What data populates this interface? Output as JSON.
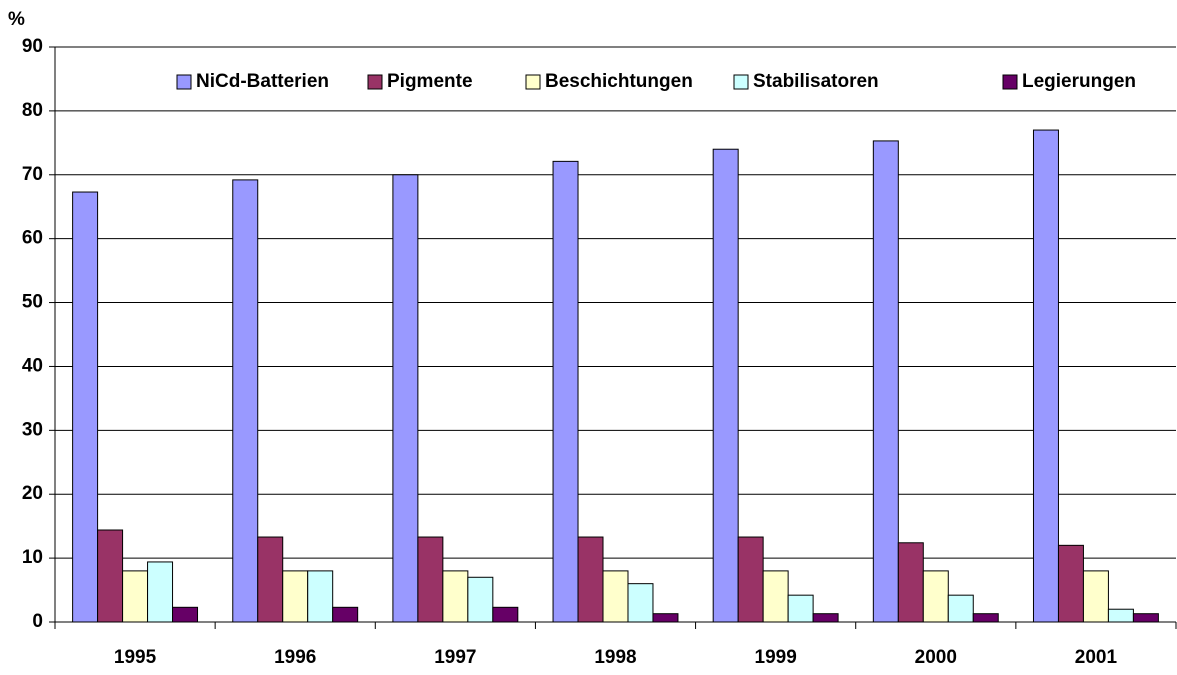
{
  "chart_data": {
    "type": "bar",
    "y_label": "%",
    "categories": [
      "1995",
      "1996",
      "1997",
      "1998",
      "1999",
      "2000",
      "2001"
    ],
    "series": [
      {
        "name": "NiCd-Batterien",
        "color": "#9999ff",
        "values": [
          67.3,
          69.2,
          70,
          72.1,
          74,
          75.3,
          77
        ]
      },
      {
        "name": "Pigmente",
        "color": "#993366",
        "values": [
          14.4,
          13.3,
          13.3,
          13.3,
          13.3,
          12.4,
          12
        ]
      },
      {
        "name": "Beschichtungen",
        "color": "#ffffcc",
        "values": [
          8,
          8,
          8,
          8,
          8,
          8,
          8
        ]
      },
      {
        "name": "Stabilisatoren",
        "color": "#ccffff",
        "values": [
          9.4,
          8,
          7,
          6,
          4.2,
          4.2,
          2
        ]
      },
      {
        "name": "Legierungen",
        "color": "#660066",
        "values": [
          2.3,
          2.3,
          2.3,
          1.3,
          1.3,
          1.3,
          1.3
        ]
      }
    ],
    "ylim": [
      0,
      90
    ],
    "yticks": [
      0,
      10,
      20,
      30,
      40,
      50,
      60,
      70,
      80,
      90
    ],
    "grid": true,
    "legend": "top-right"
  }
}
